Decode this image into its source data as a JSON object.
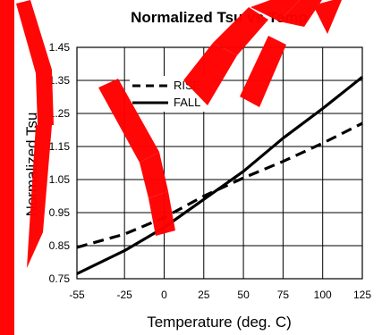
{
  "watermark": {
    "text": "NEW ...",
    "color": "#ff0000"
  },
  "chart_data": {
    "type": "line",
    "title": "Normalized Tsu vs Temp",
    "xlabel": "Temperature (deg. C)",
    "ylabel": "Normalized Tsu",
    "xlim": [
      -55,
      125
    ],
    "ylim": [
      0.75,
      1.45
    ],
    "x_ticks": [
      -55,
      -25,
      0,
      25,
      50,
      75,
      100,
      125
    ],
    "x_tick_labels": [
      "-55",
      "-25",
      "0",
      "25",
      "50",
      "75",
      "100",
      "125"
    ],
    "y_ticks": [
      0.75,
      0.85,
      0.95,
      1.05,
      1.15,
      1.25,
      1.35,
      1.45
    ],
    "y_tick_labels": [
      "0.75",
      "0.85",
      "0.95",
      "1.05",
      "1.15",
      "1.25",
      "1.35",
      "1.45"
    ],
    "grid": true,
    "legend_position": "top-left",
    "series": [
      {
        "name": "RISE",
        "style": "dashed",
        "color": "#000000",
        "points": [
          [
            -55,
            0.845
          ],
          [
            -25,
            0.885
          ],
          [
            0,
            0.935
          ],
          [
            25,
            1.0
          ],
          [
            50,
            1.055
          ],
          [
            75,
            1.105
          ],
          [
            100,
            1.16
          ],
          [
            125,
            1.22
          ]
        ]
      },
      {
        "name": "FALL",
        "style": "solid",
        "color": "#000000",
        "points": [
          [
            -55,
            0.765
          ],
          [
            -25,
            0.835
          ],
          [
            0,
            0.905
          ],
          [
            25,
            0.99
          ],
          [
            50,
            1.075
          ],
          [
            75,
            1.175
          ],
          [
            100,
            1.265
          ],
          [
            125,
            1.36
          ]
        ]
      }
    ]
  }
}
